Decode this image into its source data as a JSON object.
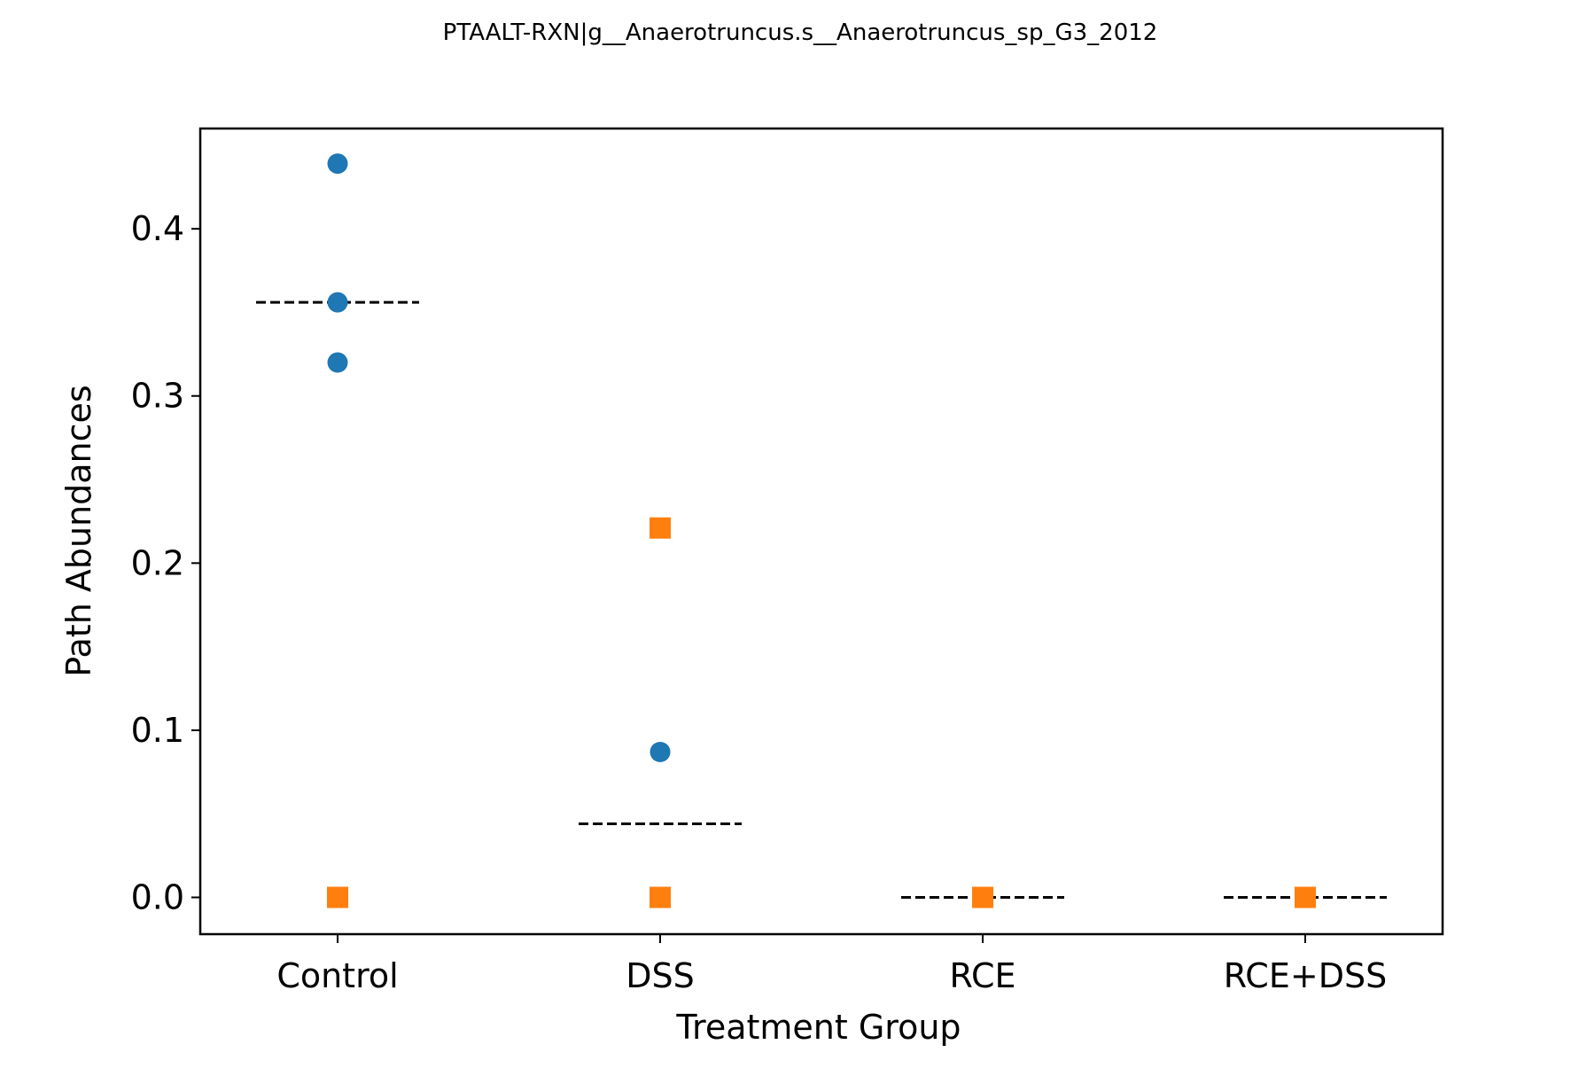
{
  "chart_data": {
    "type": "scatter",
    "title": "PTAALT-RXN|g__Anaerotruncus.s__Anaerotruncus_sp_G3_2012",
    "xlabel": "Treatment Group",
    "ylabel": "Path Abundances",
    "categories": [
      "Control",
      "DSS",
      "RCE",
      "RCE+DSS"
    ],
    "ylim": [
      -0.022,
      0.46
    ],
    "yticks": [
      0.0,
      0.1,
      0.2,
      0.3,
      0.4
    ],
    "ytick_labels": [
      "0.0",
      "0.1",
      "0.2",
      "0.3",
      "0.4"
    ],
    "grid": false,
    "legend": "none",
    "series": [
      {
        "marker": "circle",
        "color": "#1f77b4",
        "points": [
          {
            "category": "Control",
            "y": 0.439
          },
          {
            "category": "Control",
            "y": 0.356
          },
          {
            "category": "Control",
            "y": 0.32
          },
          {
            "category": "DSS",
            "y": 0.087
          }
        ]
      },
      {
        "marker": "square",
        "color": "#ff7f0e",
        "points": [
          {
            "category": "Control",
            "y": 0.0
          },
          {
            "category": "DSS",
            "y": 0.221
          },
          {
            "category": "DSS",
            "y": 0.0
          },
          {
            "category": "RCE",
            "y": 0.0
          },
          {
            "category": "RCE+DSS",
            "y": 0.0
          }
        ]
      }
    ],
    "means": [
      {
        "category": "Control",
        "y": 0.356
      },
      {
        "category": "DSS",
        "y": 0.044
      },
      {
        "category": "RCE",
        "y": 0.0
      },
      {
        "category": "RCE+DSS",
        "y": 0.0
      }
    ],
    "mean_line_color": "#000000"
  }
}
